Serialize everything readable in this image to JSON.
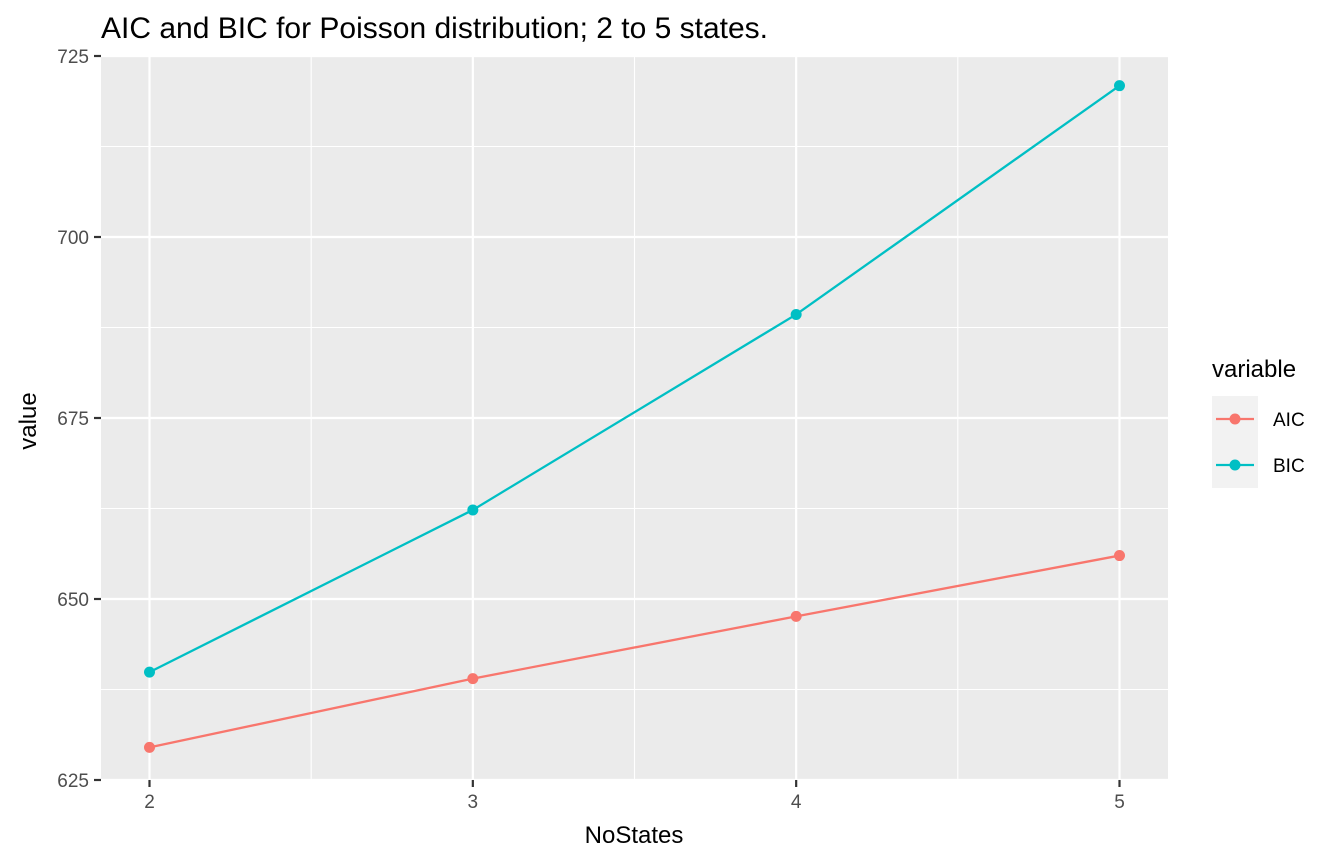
{
  "chart_data": {
    "type": "line",
    "title": "AIC and BIC for Poisson distribution; 2 to 5 states.",
    "xlabel": "NoStates",
    "ylabel": "value",
    "x": [
      2,
      3,
      4,
      5
    ],
    "xlim": [
      1.85,
      5.15
    ],
    "ylim": [
      625,
      725
    ],
    "xticks": [
      2,
      3,
      4,
      5
    ],
    "yticks": [
      625,
      650,
      675,
      700,
      725
    ],
    "xtick_labels": [
      "2",
      "3",
      "4",
      "5"
    ],
    "ytick_labels": [
      "625",
      "650",
      "675",
      "700",
      "725"
    ],
    "grid": true,
    "legend_placement": "right",
    "legend_title": "variable",
    "series": [
      {
        "name": "AIC",
        "color": "#F8766D",
        "values": [
          629.5,
          639.0,
          647.6,
          656.0
        ]
      },
      {
        "name": "BIC",
        "color": "#00BFC4",
        "values": [
          639.9,
          662.3,
          689.3,
          720.9
        ]
      }
    ],
    "panel_background": "#EBEBEB",
    "grid_color": "#FFFFFF"
  }
}
